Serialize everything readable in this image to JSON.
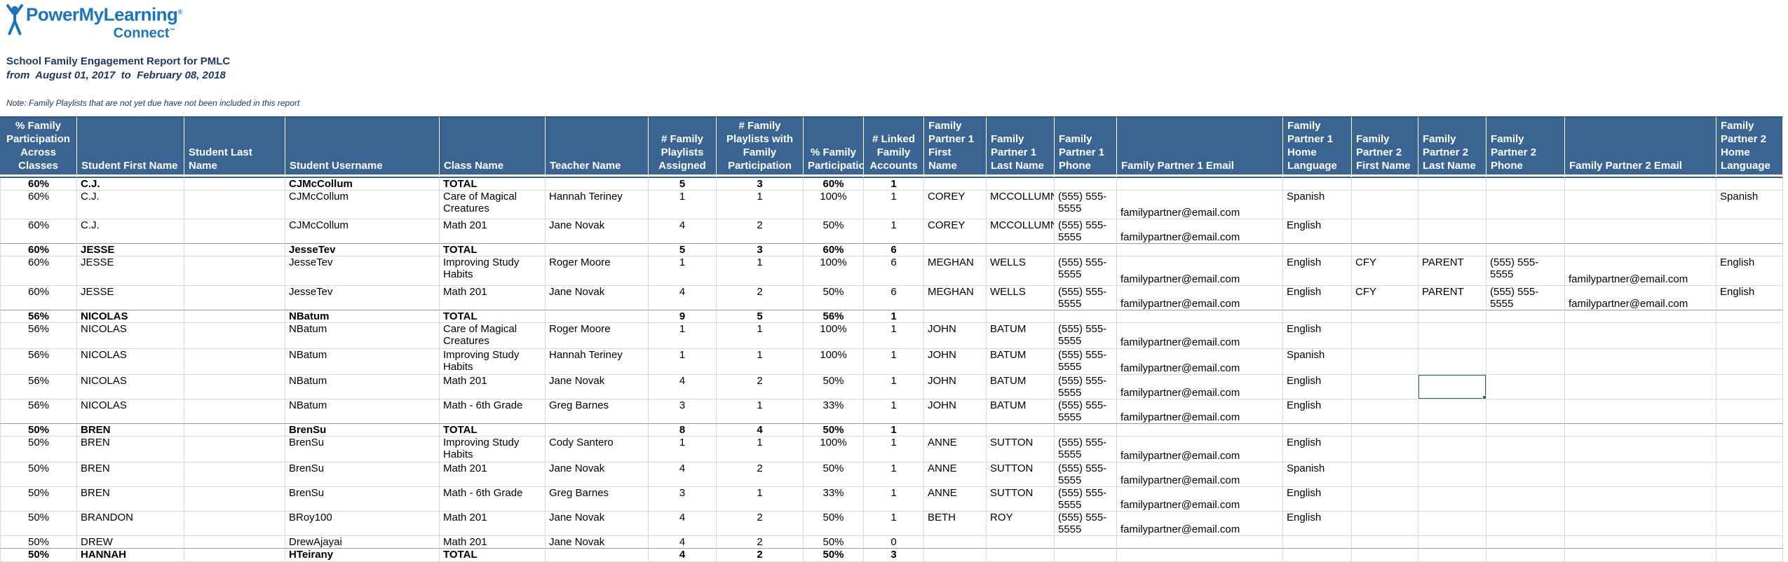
{
  "brand": {
    "logo_text": "PowerMyLearning",
    "logo_reg": "®",
    "logo_sub": "Connect",
    "logo_tm": "™",
    "logo_color": "#1B75BC"
  },
  "report": {
    "title": "School Family Engagement Report for PMLC",
    "date_range": "from  August 01, 2017  to  February 08, 2018",
    "note": "Note: Family Playlists that are not yet due have not been included in this report"
  },
  "colors": {
    "header_bg": "#3A6492",
    "header_text": "#FFFFFF",
    "grid_line": "#D9D9D9",
    "section_divider": "#999999",
    "selection_green": "#217346",
    "heading_navy": "#1F3864",
    "logo_blue": "#1B75BC"
  },
  "table": {
    "columns": [
      {
        "key": "pct-across",
        "label": "% Family Participation Across Classes",
        "align": "center"
      },
      {
        "key": "first-name",
        "label": "Student First Name",
        "align": "left"
      },
      {
        "key": "last-name",
        "label": "Student Last Name",
        "align": "left"
      },
      {
        "key": "username",
        "label": "Student Username",
        "align": "left"
      },
      {
        "key": "class-name",
        "label": "Class Name",
        "align": "left"
      },
      {
        "key": "teacher-name",
        "label": "Teacher Name",
        "align": "left"
      },
      {
        "key": "playlists-assigned",
        "label": "# Family Playlists Assigned",
        "align": "center"
      },
      {
        "key": "playlists-with-participation",
        "label": "# Family Playlists with Family Participation",
        "align": "center"
      },
      {
        "key": "pct-participation",
        "label": "% Family Participation",
        "align": "center"
      },
      {
        "key": "linked-accounts",
        "label": "# Linked Family Accounts",
        "align": "center"
      },
      {
        "key": "fp1-first-name",
        "label": "Family Partner 1 First Name",
        "align": "left"
      },
      {
        "key": "fp1-last-name",
        "label": "Family Partner 1 Last Name",
        "align": "left"
      },
      {
        "key": "fp1-phone",
        "label": "Family Partner 1 Phone",
        "align": "left"
      },
      {
        "key": "fp1-email",
        "label": "Family Partner 1 Email",
        "align": "left"
      },
      {
        "key": "fp1-home-language",
        "label": "Family Partner 1 Home Language",
        "align": "left"
      },
      {
        "key": "fp2-first-name",
        "label": "Family Partner 2 First Name",
        "align": "left"
      },
      {
        "key": "fp2-last-name",
        "label": "Family Partner 2 Last Name",
        "align": "left"
      },
      {
        "key": "fp2-phone",
        "label": "Family Partner 2 Phone",
        "align": "left"
      },
      {
        "key": "fp2-email",
        "label": "Family Partner 2 Email",
        "align": "left"
      },
      {
        "key": "fp2-home-language",
        "label": "Family Partner 2 Home Language",
        "align": "left"
      }
    ],
    "rows": [
      {
        "total": true,
        "cells": [
          "60%",
          "C.J.",
          "",
          "CJMcCollum",
          "TOTAL",
          "",
          "5",
          "3",
          "60%",
          "1",
          "",
          "",
          "",
          "",
          "",
          "",
          "",
          "",
          "",
          ""
        ]
      },
      {
        "total": false,
        "cells": [
          "60%",
          "C.J.",
          "",
          "CJMcCollum",
          "Care of Magical Creatures",
          "Hannah Teriney",
          "1",
          "1",
          "100%",
          "1",
          "COREY",
          "MCCOLLUMN",
          "(555) 555-5555",
          "familypartner@email.com",
          "Spanish",
          "",
          "",
          "",
          "",
          "Spanish"
        ]
      },
      {
        "total": false,
        "cells": [
          "60%",
          "C.J.",
          "",
          "CJMcCollum",
          "Math 201",
          "Jane Novak",
          "4",
          "2",
          "50%",
          "1",
          "COREY",
          "MCCOLLUMN",
          "(555) 555-5555",
          "familypartner@email.com",
          "English",
          "",
          "",
          "",
          "",
          ""
        ]
      },
      {
        "total": true,
        "cells": [
          "60%",
          "JESSE",
          "",
          "JesseTev",
          "TOTAL",
          "",
          "5",
          "3",
          "60%",
          "6",
          "",
          "",
          "",
          "",
          "",
          "",
          "",
          "",
          "",
          ""
        ]
      },
      {
        "total": false,
        "cells": [
          "60%",
          "JESSE",
          "",
          "JesseTev",
          "Improving Study Habits",
          "Roger Moore",
          "1",
          "1",
          "100%",
          "6",
          "MEGHAN",
          "WELLS",
          "(555) 555-5555",
          "familypartner@email.com",
          "English",
          "CFY",
          "PARENT",
          "(555) 555-5555",
          "familypartner@email.com",
          "English"
        ]
      },
      {
        "total": false,
        "cells": [
          "60%",
          "JESSE",
          "",
          "JesseTev",
          "Math 201",
          "Jane Novak",
          "4",
          "2",
          "50%",
          "6",
          "MEGHAN",
          "WELLS",
          "(555) 555-5555",
          "familypartner@email.com",
          "English",
          "CFY",
          "PARENT",
          "(555) 555-5555",
          "familypartner@email.com",
          "English"
        ]
      },
      {
        "total": true,
        "cells": [
          "56%",
          "NICOLAS",
          "",
          "NBatum",
          "TOTAL",
          "",
          "9",
          "5",
          "56%",
          "1",
          "",
          "",
          "",
          "",
          "",
          "",
          "",
          "",
          "",
          ""
        ]
      },
      {
        "total": false,
        "cells": [
          "56%",
          "NICOLAS",
          "",
          "NBatum",
          "Care of Magical Creatures",
          "Roger Moore",
          "1",
          "1",
          "100%",
          "1",
          "JOHN",
          "BATUM",
          "(555) 555-5555",
          "familypartner@email.com",
          "English",
          "",
          "",
          "",
          "",
          ""
        ]
      },
      {
        "total": false,
        "cells": [
          "56%",
          "NICOLAS",
          "",
          "NBatum",
          "Improving Study Habits",
          "Hannah Teriney",
          "1",
          "1",
          "100%",
          "1",
          "JOHN",
          "BATUM",
          "(555) 555-5555",
          "familypartner@email.com",
          "Spanish",
          "",
          "",
          "",
          "",
          ""
        ]
      },
      {
        "total": false,
        "cells": [
          "56%",
          "NICOLAS",
          "",
          "NBatum",
          "Math 201",
          "Jane Novak",
          "4",
          "2",
          "50%",
          "1",
          "JOHN",
          "BATUM",
          "(555) 555-5555",
          "familypartner@email.com",
          "English",
          "",
          "",
          "",
          "",
          ""
        ]
      },
      {
        "total": false,
        "cells": [
          "56%",
          "NICOLAS",
          "",
          "NBatum",
          "Math - 6th Grade",
          "Greg Barnes",
          "3",
          "1",
          "33%",
          "1",
          "JOHN",
          "BATUM",
          "(555) 555-5555",
          "familypartner@email.com",
          "English",
          "",
          "",
          "",
          "",
          ""
        ]
      },
      {
        "total": true,
        "cells": [
          "50%",
          "BREN",
          "",
          "BrenSu",
          "TOTAL",
          "",
          "8",
          "4",
          "50%",
          "1",
          "",
          "",
          "",
          "",
          "",
          "",
          "",
          "",
          "",
          ""
        ]
      },
      {
        "total": false,
        "cells": [
          "50%",
          "BREN",
          "",
          "BrenSu",
          "Improving Study Habits",
          "Cody Santero",
          "1",
          "1",
          "100%",
          "1",
          "ANNE",
          "SUTTON",
          "(555) 555-5555",
          "familypartner@email.com",
          "English",
          "",
          "",
          "",
          "",
          ""
        ]
      },
      {
        "total": false,
        "cells": [
          "50%",
          "BREN",
          "",
          "BrenSu",
          "Math 201",
          "Jane Novak",
          "4",
          "2",
          "50%",
          "1",
          "ANNE",
          "SUTTON",
          "(555) 555-5555",
          "familypartner@email.com",
          "Spanish",
          "",
          "",
          "",
          "",
          ""
        ]
      },
      {
        "total": false,
        "cells": [
          "50%",
          "BREN",
          "",
          "BrenSu",
          "Math - 6th Grade",
          "Greg Barnes",
          "3",
          "1",
          "33%",
          "1",
          "ANNE",
          "SUTTON",
          "(555) 555-5555",
          "familypartner@email.com",
          "English",
          "",
          "",
          "",
          "",
          ""
        ]
      },
      {
        "total": false,
        "cells": [
          "50%",
          "BRANDON",
          "",
          "BRoy100",
          "Math 201",
          "Jane Novak",
          "4",
          "2",
          "50%",
          "1",
          "BETH",
          "ROY",
          "(555) 555-5555",
          "familypartner@email.com",
          "English",
          "",
          "",
          "",
          "",
          ""
        ]
      },
      {
        "total": false,
        "cells": [
          "50%",
          "DREW",
          "",
          "DrewAjayai",
          "Math 201",
          "Jane Novak",
          "4",
          "2",
          "50%",
          "0",
          "",
          "",
          "",
          "",
          "",
          "",
          "",
          "",
          "",
          ""
        ]
      },
      {
        "total": true,
        "cells": [
          "50%",
          "HANNAH",
          "",
          "HTeirany",
          "TOTAL",
          "",
          "4",
          "2",
          "50%",
          "3",
          "",
          "",
          "",
          "",
          "",
          "",
          "",
          "",
          "",
          ""
        ]
      }
    ],
    "selection": {
      "row_index": 9,
      "col_index": 16
    }
  }
}
